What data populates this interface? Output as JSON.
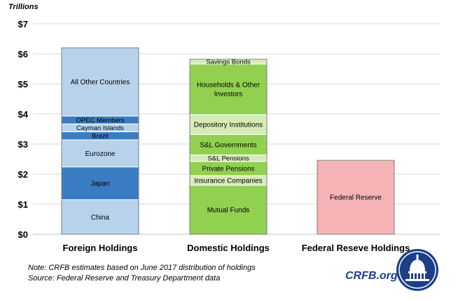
{
  "unit_label": "Trillions",
  "notes": {
    "line1": "Note: CRFB estimates based on June 2017 distribution of holdings",
    "line2": "Source: Federal Reserve and Treasury Department data"
  },
  "branding": {
    "site_text": "CRFB.org",
    "seal_icon": "capitol-dome-seal-icon",
    "seal_color": "#1e3f88"
  },
  "chart_data": {
    "type": "bar",
    "stacked": true,
    "title": "",
    "xlabel": "",
    "ylabel": "Trillions",
    "ylim": [
      0,
      7
    ],
    "yticks": [
      0,
      1,
      2,
      3,
      4,
      5,
      6,
      7
    ],
    "ytick_labels": [
      "$0",
      "$1",
      "$2",
      "$3",
      "$4",
      "$5",
      "$6",
      "$7"
    ],
    "grid": true,
    "categories": [
      "Foreign Holdings",
      "Domestic Holdings",
      "Federal Reseve Holdings"
    ],
    "stacks": [
      {
        "category": "Foreign Holdings",
        "segments": [
          {
            "label": "China",
            "value": 1.15,
            "color": "#b8d2ec"
          },
          {
            "label": "Japan",
            "value": 1.09,
            "color": "#3a7cc2"
          },
          {
            "label": "Eurozone",
            "value": 0.9,
            "color": "#b8d2ec"
          },
          {
            "label": "Brazil",
            "value": 0.27,
            "color": "#3a7cc2"
          },
          {
            "label": "Cayman Islands",
            "value": 0.26,
            "color": "#b8d2ec"
          },
          {
            "label": "OPEC Members",
            "value": 0.26,
            "color": "#3a7cc2"
          },
          {
            "label": "All Other Countries",
            "value": 2.27,
            "color": "#b8d2ec"
          }
        ]
      },
      {
        "category": "Domestic Holdings",
        "segments": [
          {
            "label": "Mutual Funds",
            "value": 1.63,
            "color": "#92d050"
          },
          {
            "label": "Insurance Companies",
            "value": 0.32,
            "color": "#d6ecb8"
          },
          {
            "label": "Private Pensions",
            "value": 0.47,
            "color": "#92d050"
          },
          {
            "label": "S&L Pensions",
            "value": 0.22,
            "color": "#d6ecb8"
          },
          {
            "label": "S&L Governments",
            "value": 0.68,
            "color": "#92d050"
          },
          {
            "label": "Depository Institutions",
            "value": 0.66,
            "color": "#d6ecb8"
          },
          {
            "label": "Households & Other Investors",
            "value": 1.68,
            "color": "#92d050"
          },
          {
            "label": "Savings Bonds",
            "value": 0.16,
            "color": "#d6ecb8"
          }
        ]
      },
      {
        "category": "Federal Reseve Holdings",
        "segments": [
          {
            "label": "Federal Reserve",
            "value": 2.46,
            "color": "#f5b3b6"
          }
        ]
      }
    ]
  }
}
